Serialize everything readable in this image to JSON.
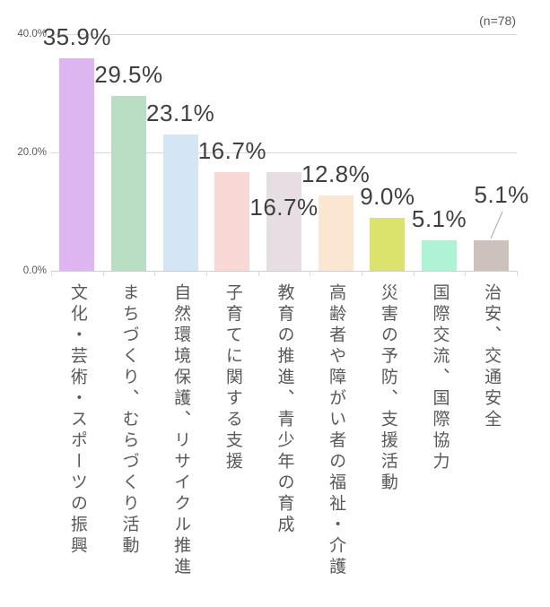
{
  "chart_data": {
    "type": "bar",
    "title": "",
    "n_label": "(n=78)",
    "categories": [
      "文化・芸術・スポーツの振興",
      "まちづくり、むらづくり活動",
      "自然環境保護、リサイクル推進",
      "子育てに関する支援",
      "教育の推進、青少年の育成",
      "高齢者や障がい者の福祉・介護",
      "災害の予防、支援活動",
      "国際交流、国際協力",
      "治安、交通安全"
    ],
    "values": [
      35.9,
      29.5,
      23.1,
      16.7,
      16.7,
      12.8,
      9.0,
      5.1,
      5.1
    ],
    "value_labels": [
      "35.9%",
      "29.5%",
      "23.1%",
      "16.7%",
      "16.7%",
      "12.8%",
      "9.0%",
      "5.1%",
      "5.1%"
    ],
    "bar_colors": [
      "#dcb5f1",
      "#b9dec3",
      "#d4e6f4",
      "#f8d8d4",
      "#e6dee2",
      "#fbe7d1",
      "#dce36d",
      "#aff3d6",
      "#cdc2bb"
    ],
    "ylim": [
      0,
      40
    ],
    "y_ticks": [
      {
        "label": "40.0%",
        "value": 40
      },
      {
        "label": "20.0%",
        "value": 20
      },
      {
        "label": "0.0%",
        "value": 0
      }
    ],
    "xlabel": "",
    "ylabel": "",
    "grid": true,
    "legend": false
  }
}
